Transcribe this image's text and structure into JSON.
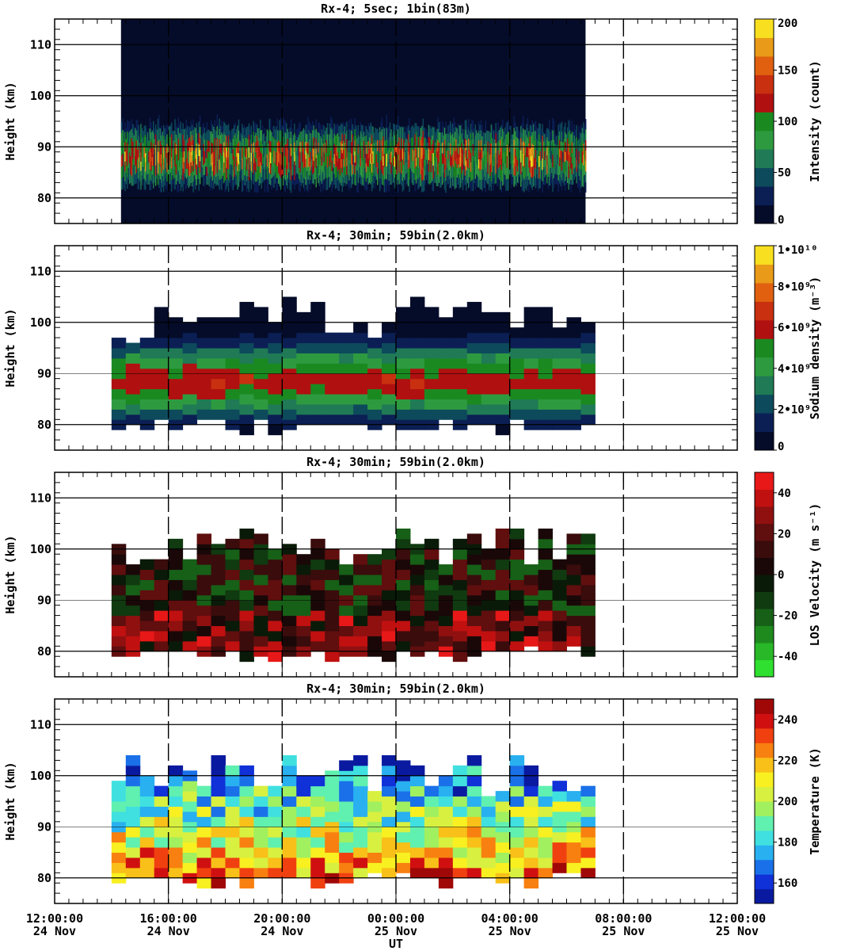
{
  "figure": {
    "xlabel": "UT",
    "x_ticks": [
      {
        "time": "12:00:00",
        "date": "24 Nov"
      },
      {
        "time": "16:00:00",
        "date": "24 Nov"
      },
      {
        "time": "20:00:00",
        "date": "24 Nov"
      },
      {
        "time": "00:00:00",
        "date": "25 Nov"
      },
      {
        "time": "04:00:00",
        "date": "25 Nov"
      },
      {
        "time": "08:00:00",
        "date": "25 Nov"
      },
      {
        "time": "12:00:00",
        "date": "25 Nov"
      }
    ]
  },
  "chart_data": [
    {
      "type": "heatmap",
      "title": "Rx-4;  5sec; 1bin(83m)",
      "ylabel": "Height (km)",
      "ylim": [
        75,
        115
      ],
      "y_ticks": [
        80,
        90,
        100,
        110
      ],
      "xlim": [
        "2020-11-24T12:00",
        "2020-11-25T12:00"
      ],
      "data_time_range": [
        "2020-11-24T14:20",
        "2020-11-25T06:40"
      ],
      "colorbar": {
        "label": "Intensity (count)",
        "range": [
          0,
          200
        ],
        "ticks": [
          "0",
          "50",
          "100",
          "150",
          "200"
        ],
        "colors": [
          "#050c2a",
          "#0b1f55",
          "#0d4a5c",
          "#1f7a55",
          "#2e9a40",
          "#1a8a20",
          "#b01010",
          "#c83010",
          "#e06010",
          "#e89a18",
          "#f8e020"
        ]
      }
    },
    {
      "type": "heatmap",
      "title": "Rx-4; 30min; 59bin(2.0km)",
      "ylabel": "Height (km)",
      "ylim": [
        75,
        115
      ],
      "y_ticks": [
        80,
        90,
        100,
        110
      ],
      "xlim": [
        "2020-11-24T12:00",
        "2020-11-25T12:00"
      ],
      "data_time_range": [
        "2020-11-24T14:00",
        "2020-11-25T07:00"
      ],
      "colorbar": {
        "label": "Sodium density (m⁻³)",
        "range": [
          0,
          10000000000
        ],
        "ticks": [
          "0",
          "2•10⁹",
          "4•10⁹",
          "6•10⁹",
          "8•10⁹",
          "1•10¹⁰"
        ],
        "colors": [
          "#050c2a",
          "#0b1f55",
          "#0d4a5c",
          "#1f7a55",
          "#2e9a40",
          "#1a8a20",
          "#b01010",
          "#c83010",
          "#e06010",
          "#e89a18",
          "#f8e020"
        ]
      }
    },
    {
      "type": "heatmap",
      "title": "Rx-4; 30min; 59bin(2.0km)",
      "ylabel": "Height (km)",
      "ylim": [
        75,
        115
      ],
      "y_ticks": [
        80,
        90,
        100,
        110
      ],
      "xlim": [
        "2020-11-24T12:00",
        "2020-11-25T12:00"
      ],
      "data_time_range": [
        "2020-11-24T14:00",
        "2020-11-25T07:00"
      ],
      "colorbar": {
        "label": "LOS Velocity (m s⁻¹)",
        "range": [
          -50,
          50
        ],
        "ticks": [
          "-40",
          "-20",
          "0",
          "20",
          "40"
        ],
        "colors": [
          "#30e030",
          "#28b828",
          "#1e8a1e",
          "#176017",
          "#103a10",
          "#0a1a08",
          "#1a0808",
          "#3a0c0c",
          "#600e0e",
          "#901010",
          "#c01010",
          "#e81818"
        ]
      }
    },
    {
      "type": "heatmap",
      "title": "Rx-4; 30min; 59bin(2.0km)",
      "ylabel": "Height (km)",
      "ylim": [
        75,
        115
      ],
      "y_ticks": [
        80,
        90,
        100,
        110
      ],
      "xlim": [
        "2020-11-24T12:00",
        "2020-11-25T12:00"
      ],
      "data_time_range": [
        "2020-11-24T14:00",
        "2020-11-25T07:00"
      ],
      "colorbar": {
        "label": "Temperature (K)",
        "range": [
          150,
          250
        ],
        "ticks": [
          "160",
          "180",
          "200",
          "220",
          "240"
        ],
        "colors": [
          "#0a1aa0",
          "#1030d8",
          "#1a70e8",
          "#28b0f0",
          "#40e0e0",
          "#60f0b0",
          "#a0f060",
          "#d8f040",
          "#f8f020",
          "#f8c018",
          "#f88010",
          "#f04010",
          "#d01010",
          "#a00808"
        ]
      }
    }
  ]
}
